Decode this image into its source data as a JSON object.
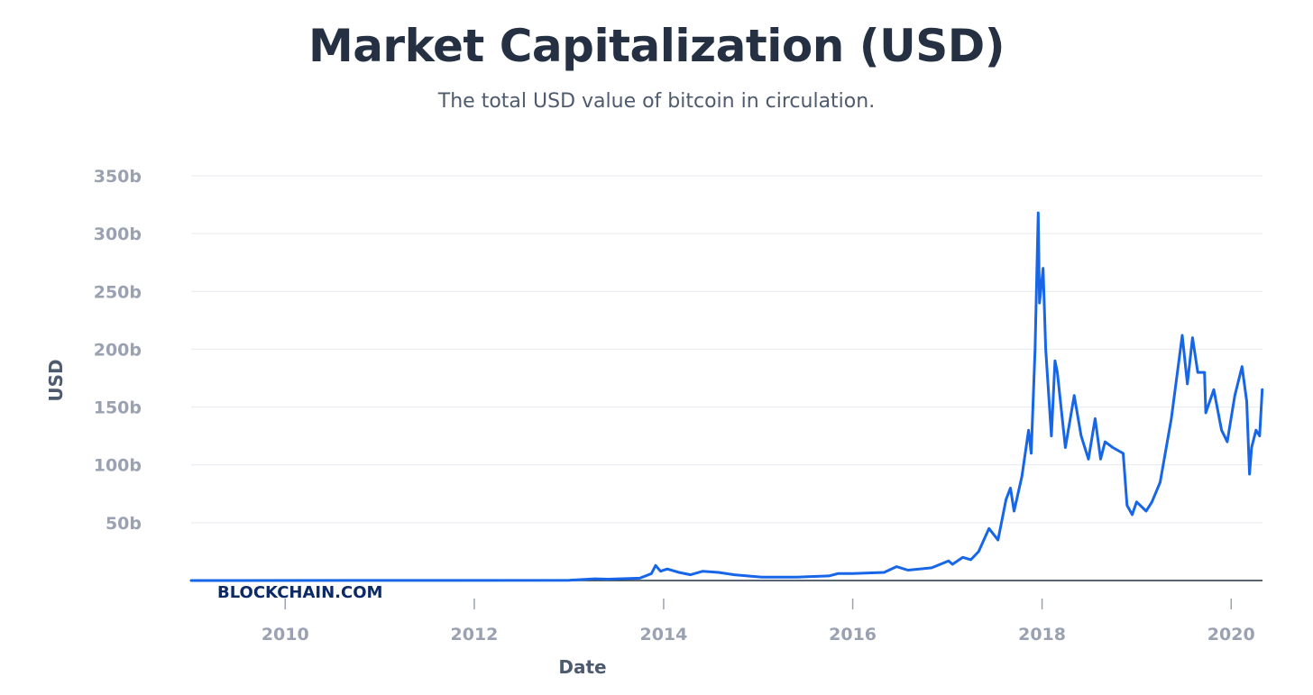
{
  "title": "Market Capitalization (USD)",
  "subtitle": "The total USD value of bitcoin in circulation.",
  "watermark": "BLOCKCHAIN.COM",
  "colors": {
    "line": "#1766e8",
    "grid": "#e6e9ef",
    "axis": "#253043"
  },
  "chart_data": {
    "type": "line",
    "title": "Market Capitalization (USD)",
    "subtitle": "The total USD value of bitcoin in circulation.",
    "xlabel": "Date",
    "ylabel": "USD",
    "xlim": [
      "2009-01-03",
      "2020-05-01"
    ],
    "ylim": [
      0,
      350
    ],
    "y_unit": "billion USD",
    "grid": true,
    "legend": "none",
    "x_ticks": [
      {
        "value": "2010-01-01",
        "label": "2010"
      },
      {
        "value": "2012-01-01",
        "label": "2012"
      },
      {
        "value": "2014-01-01",
        "label": "2014"
      },
      {
        "value": "2016-01-01",
        "label": "2016"
      },
      {
        "value": "2018-01-01",
        "label": "2018"
      },
      {
        "value": "2020-01-01",
        "label": "2020"
      }
    ],
    "y_ticks": [
      {
        "value": 50,
        "label": "50b"
      },
      {
        "value": 100,
        "label": "100b"
      },
      {
        "value": 150,
        "label": "150b"
      },
      {
        "value": 200,
        "label": "200b"
      },
      {
        "value": 250,
        "label": "250b"
      },
      {
        "value": 300,
        "label": "300b"
      },
      {
        "value": 350,
        "label": "350b"
      }
    ],
    "series": [
      {
        "points": [
          [
            "2009-01-03",
            0
          ],
          [
            "2011-06-01",
            0.1
          ],
          [
            "2013-01-01",
            0.2
          ],
          [
            "2013-04-10",
            1.5
          ],
          [
            "2013-06-01",
            1.2
          ],
          [
            "2013-10-01",
            2
          ],
          [
            "2013-11-15",
            6
          ],
          [
            "2013-12-01",
            13
          ],
          [
            "2013-12-20",
            8
          ],
          [
            "2014-01-15",
            10
          ],
          [
            "2014-03-01",
            7
          ],
          [
            "2014-04-15",
            5
          ],
          [
            "2014-06-01",
            8
          ],
          [
            "2014-08-01",
            7
          ],
          [
            "2014-10-01",
            5
          ],
          [
            "2015-01-15",
            3
          ],
          [
            "2015-06-01",
            3
          ],
          [
            "2015-10-01",
            4
          ],
          [
            "2015-11-05",
            6
          ],
          [
            "2016-01-01",
            6
          ],
          [
            "2016-05-01",
            7
          ],
          [
            "2016-06-18",
            12
          ],
          [
            "2016-08-01",
            9
          ],
          [
            "2016-11-01",
            11
          ],
          [
            "2017-01-05",
            17
          ],
          [
            "2017-01-20",
            14
          ],
          [
            "2017-03-01",
            20
          ],
          [
            "2017-04-01",
            18
          ],
          [
            "2017-05-01",
            25
          ],
          [
            "2017-06-10",
            45
          ],
          [
            "2017-07-15",
            35
          ],
          [
            "2017-08-15",
            70
          ],
          [
            "2017-09-01",
            80
          ],
          [
            "2017-09-15",
            60
          ],
          [
            "2017-10-15",
            90
          ],
          [
            "2017-11-10",
            130
          ],
          [
            "2017-11-20",
            110
          ],
          [
            "2017-12-05",
            200
          ],
          [
            "2017-12-17",
            318
          ],
          [
            "2017-12-22",
            240
          ],
          [
            "2018-01-05",
            270
          ],
          [
            "2018-01-15",
            200
          ],
          [
            "2018-02-06",
            125
          ],
          [
            "2018-02-20",
            190
          ],
          [
            "2018-03-01",
            180
          ],
          [
            "2018-04-01",
            115
          ],
          [
            "2018-05-05",
            160
          ],
          [
            "2018-06-01",
            125
          ],
          [
            "2018-06-29",
            105
          ],
          [
            "2018-07-25",
            140
          ],
          [
            "2018-08-15",
            105
          ],
          [
            "2018-09-01",
            120
          ],
          [
            "2018-10-01",
            115
          ],
          [
            "2018-11-10",
            110
          ],
          [
            "2018-11-25",
            65
          ],
          [
            "2018-12-15",
            57
          ],
          [
            "2019-01-01",
            68
          ],
          [
            "2019-02-07",
            60
          ],
          [
            "2019-03-01",
            68
          ],
          [
            "2019-04-02",
            85
          ],
          [
            "2019-05-15",
            140
          ],
          [
            "2019-06-26",
            212
          ],
          [
            "2019-07-16",
            170
          ],
          [
            "2019-08-05",
            210
          ],
          [
            "2019-08-25",
            180
          ],
          [
            "2019-09-20",
            180
          ],
          [
            "2019-09-25",
            145
          ],
          [
            "2019-10-26",
            165
          ],
          [
            "2019-11-25",
            130
          ],
          [
            "2019-12-17",
            120
          ],
          [
            "2020-01-15",
            160
          ],
          [
            "2020-02-12",
            185
          ],
          [
            "2020-03-01",
            155
          ],
          [
            "2020-03-12",
            92
          ],
          [
            "2020-03-20",
            115
          ],
          [
            "2020-04-06",
            130
          ],
          [
            "2020-04-20",
            125
          ],
          [
            "2020-04-30",
            165
          ]
        ]
      }
    ]
  }
}
